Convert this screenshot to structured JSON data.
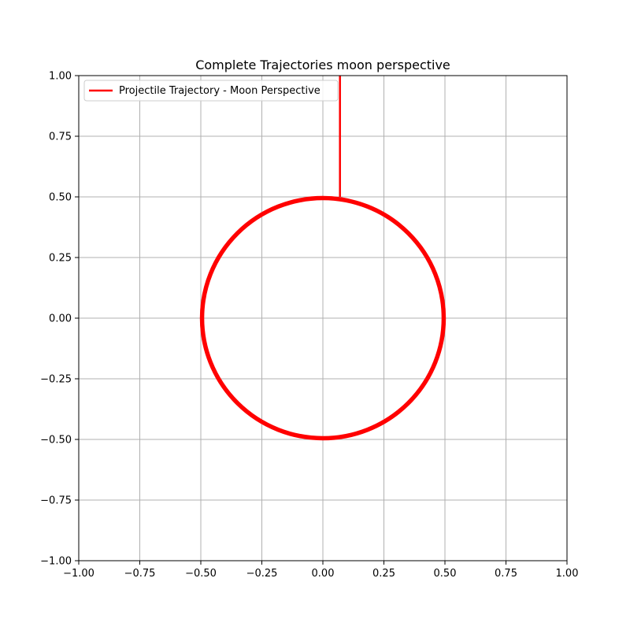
{
  "chart_data": {
    "type": "line",
    "title": "Complete Trajectories moon perspective",
    "xlabel": "",
    "ylabel": "",
    "xlim": [
      -1.0,
      1.0
    ],
    "ylim": [
      -1.0,
      1.0
    ],
    "x_ticks": [
      "−1.00",
      "−0.75",
      "−0.50",
      "−0.25",
      "0.00",
      "0.25",
      "0.50",
      "0.75",
      "1.00"
    ],
    "y_ticks": [
      "−1.00",
      "−0.75",
      "−0.50",
      "−0.25",
      "0.00",
      "0.25",
      "0.50",
      "0.75",
      "1.00"
    ],
    "grid": true,
    "legend_position": "upper-left",
    "series": [
      {
        "name": "Projectile Trajectory - Moon Perspective",
        "color": "#ff0000",
        "path": {
          "straight_segment": {
            "x": [
              0.07,
              0.07
            ],
            "y": [
              1.0,
              0.5
            ]
          },
          "orbit": {
            "center": [
              0.0,
              0.0
            ],
            "radius": 0.495
          }
        }
      }
    ]
  }
}
